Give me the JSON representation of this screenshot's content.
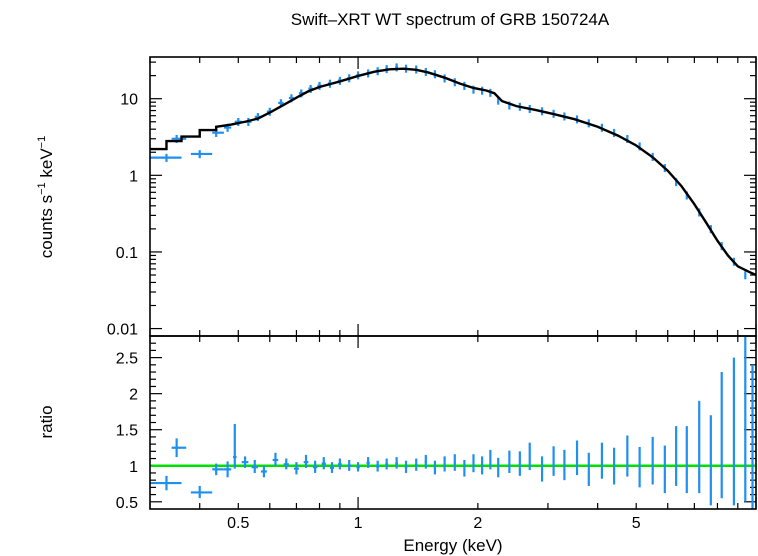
{
  "chart_data": [
    {
      "type": "scatter",
      "panel": "spectrum",
      "title": "Swift–XRT WT spectrum of GRB 150724A",
      "ylabel_main": "counts s",
      "ylabel_sup1": "−1",
      "ylabel_mid": " keV",
      "ylabel_sup2": "−1",
      "xscale": "log",
      "yscale": "log",
      "xlim": [
        0.3,
        10
      ],
      "ylim": [
        0.008,
        35
      ],
      "yticks": [
        "0.01",
        "0.1",
        "1",
        "10"
      ],
      "yticks_values": [
        0.01,
        0.1,
        1,
        10
      ],
      "series": [
        {
          "kind": "data",
          "color": "#1f8ff0",
          "points": [
            [
              0.33,
              1.7,
              0.3,
              0.36
            ],
            [
              0.35,
              3.0,
              0.34,
              0.37
            ],
            [
              0.4,
              1.9,
              0.38,
              0.43
            ],
            [
              0.44,
              3.6,
              0.43,
              0.46
            ],
            [
              0.47,
              4.2,
              0.46,
              0.48
            ],
            [
              0.5,
              5.0,
              0.49,
              0.51
            ],
            [
              0.53,
              5.0,
              0.52,
              0.54
            ],
            [
              0.56,
              5.8,
              0.55,
              0.57
            ],
            [
              0.6,
              6.8,
              0.59,
              0.61
            ],
            [
              0.64,
              8.8,
              0.63,
              0.65
            ],
            [
              0.68,
              10.2,
              0.67,
              0.69
            ],
            [
              0.72,
              11.8,
              0.71,
              0.73
            ],
            [
              0.76,
              13.5,
              0.75,
              0.77
            ],
            [
              0.8,
              14.8,
              0.79,
              0.81
            ],
            [
              0.85,
              15.8,
              0.84,
              0.86
            ],
            [
              0.9,
              17.2,
              0.89,
              0.91
            ],
            [
              0.95,
              18.6,
              0.94,
              0.96
            ],
            [
              1.0,
              20.3,
              0.99,
              1.01
            ],
            [
              1.06,
              21.5,
              1.05,
              1.07
            ],
            [
              1.12,
              23.0,
              1.11,
              1.13
            ],
            [
              1.18,
              24.5,
              1.17,
              1.19
            ],
            [
              1.25,
              25.8,
              1.24,
              1.26
            ],
            [
              1.32,
              24.8,
              1.31,
              1.33
            ],
            [
              1.4,
              24.2,
              1.39,
              1.41
            ],
            [
              1.48,
              22.5,
              1.47,
              1.49
            ],
            [
              1.56,
              21.0,
              1.55,
              1.57
            ],
            [
              1.65,
              18.5,
              1.64,
              1.66
            ],
            [
              1.75,
              16.5,
              1.74,
              1.76
            ],
            [
              1.85,
              14.8,
              1.84,
              1.86
            ],
            [
              1.95,
              13.2,
              1.94,
              1.96
            ],
            [
              2.05,
              12.8,
              2.04,
              2.06
            ],
            [
              2.15,
              12.0,
              2.14,
              2.16
            ],
            [
              2.25,
              9.5,
              2.24,
              2.26
            ],
            [
              2.4,
              8.2,
              2.39,
              2.41
            ],
            [
              2.55,
              7.9,
              2.54,
              2.56
            ],
            [
              2.7,
              7.4,
              2.69,
              2.71
            ],
            [
              2.9,
              6.9,
              2.89,
              2.91
            ],
            [
              3.1,
              6.4,
              3.09,
              3.11
            ],
            [
              3.3,
              5.9,
              3.29,
              3.31
            ],
            [
              3.55,
              5.4,
              3.54,
              3.56
            ],
            [
              3.8,
              4.8,
              3.79,
              3.81
            ],
            [
              4.1,
              4.2,
              4.09,
              4.11
            ],
            [
              4.4,
              3.6,
              4.39,
              4.41
            ],
            [
              4.75,
              3.0,
              4.74,
              4.76
            ],
            [
              5.1,
              2.4,
              5.09,
              5.11
            ],
            [
              5.5,
              1.75,
              5.49,
              5.51
            ],
            [
              5.9,
              1.25,
              5.89,
              5.91
            ],
            [
              6.3,
              0.82,
              6.29,
              6.31
            ],
            [
              6.7,
              0.55,
              6.69,
              6.71
            ],
            [
              7.2,
              0.33,
              7.19,
              7.21
            ],
            [
              7.7,
              0.2,
              7.69,
              7.71
            ],
            [
              8.2,
              0.12,
              8.19,
              8.21
            ],
            [
              8.8,
              0.075,
              8.79,
              8.81
            ],
            [
              9.4,
              0.05,
              9.39,
              9.41
            ]
          ]
        },
        {
          "kind": "model",
          "color": "#000000",
          "points": [
            [
              0.3,
              2.2
            ],
            [
              0.33,
              2.2
            ],
            [
              0.33,
              2.8
            ],
            [
              0.36,
              2.8
            ],
            [
              0.36,
              3.2
            ],
            [
              0.4,
              3.2
            ],
            [
              0.4,
              3.9
            ],
            [
              0.44,
              3.9
            ],
            [
              0.44,
              4.3
            ],
            [
              0.48,
              4.6
            ],
            [
              0.52,
              5.0
            ],
            [
              0.56,
              5.5
            ],
            [
              0.6,
              6.6
            ],
            [
              0.65,
              8.3
            ],
            [
              0.7,
              10.3
            ],
            [
              0.75,
              12.5
            ],
            [
              0.8,
              14.2
            ],
            [
              0.85,
              15.5
            ],
            [
              0.9,
              16.8
            ],
            [
              1.0,
              19.8
            ],
            [
              1.1,
              22.5
            ],
            [
              1.2,
              24.2
            ],
            [
              1.3,
              24.6
            ],
            [
              1.4,
              23.8
            ],
            [
              1.5,
              22.0
            ],
            [
              1.65,
              18.8
            ],
            [
              1.8,
              15.8
            ],
            [
              1.95,
              13.8
            ],
            [
              2.1,
              12.8
            ],
            [
              2.2,
              11.8
            ],
            [
              2.3,
              9.3
            ],
            [
              2.5,
              8.0
            ],
            [
              2.8,
              7.1
            ],
            [
              3.1,
              6.3
            ],
            [
              3.5,
              5.4
            ],
            [
              4.0,
              4.3
            ],
            [
              4.5,
              3.3
            ],
            [
              5.0,
              2.45
            ],
            [
              5.5,
              1.72
            ],
            [
              6.0,
              1.15
            ],
            [
              6.5,
              0.72
            ],
            [
              7.0,
              0.42
            ],
            [
              7.5,
              0.24
            ],
            [
              8.0,
              0.14
            ],
            [
              8.5,
              0.09
            ],
            [
              9.0,
              0.065
            ],
            [
              9.6,
              0.055
            ],
            [
              10.0,
              0.05
            ]
          ]
        }
      ]
    },
    {
      "type": "scatter",
      "panel": "ratio",
      "ylabel": "ratio",
      "xlabel": "Energy (keV)",
      "xscale": "log",
      "yscale": "linear",
      "xlim": [
        0.3,
        10
      ],
      "ylim": [
        0.4,
        2.8
      ],
      "xticks": [
        "0.5",
        "1",
        "2",
        "5"
      ],
      "xticks_values": [
        0.5,
        1,
        2,
        5
      ],
      "yticks": [
        "0.5",
        "1",
        "1.5",
        "2",
        "2.5"
      ],
      "yticks_values": [
        0.5,
        1,
        1.5,
        2,
        2.5
      ],
      "reference_line": {
        "y": 1,
        "color": "#00e000"
      },
      "series": [
        {
          "kind": "data",
          "color": "#1f8ff0",
          "points": [
            [
              0.33,
              0.76,
              0.3,
              0.36,
              0.66,
              0.86
            ],
            [
              0.35,
              1.25,
              0.34,
              0.37,
              1.12,
              1.38
            ],
            [
              0.4,
              0.63,
              0.38,
              0.43,
              0.55,
              0.72
            ],
            [
              0.44,
              0.95,
              0.43,
              0.46,
              0.87,
              1.03
            ],
            [
              0.47,
              0.95,
              0.46,
              0.48,
              0.84,
              1.06
            ],
            [
              0.49,
              1.12,
              0.485,
              0.495,
              0.96,
              1.58
            ],
            [
              0.52,
              1.05,
              0.51,
              0.53,
              0.97,
              1.13
            ],
            [
              0.55,
              0.98,
              0.54,
              0.56,
              0.9,
              1.08
            ],
            [
              0.58,
              0.92,
              0.57,
              0.59,
              0.84,
              1.0
            ],
            [
              0.62,
              1.08,
              0.61,
              0.63,
              1.0,
              1.18
            ],
            [
              0.66,
              1.02,
              0.65,
              0.67,
              0.95,
              1.1
            ],
            [
              0.7,
              0.96,
              0.69,
              0.71,
              0.88,
              1.05
            ],
            [
              0.74,
              1.05,
              0.73,
              0.75,
              0.97,
              1.15
            ],
            [
              0.78,
              0.98,
              0.77,
              0.79,
              0.9,
              1.07
            ],
            [
              0.82,
              1.03,
              0.81,
              0.83,
              0.95,
              1.12
            ],
            [
              0.86,
              0.97,
              0.85,
              0.87,
              0.9,
              1.05
            ],
            [
              0.9,
              1.02,
              0.89,
              0.91,
              0.95,
              1.1
            ],
            [
              0.95,
              1.0,
              0.94,
              0.96,
              0.93,
              1.08
            ],
            [
              1.0,
              0.98,
              0.99,
              1.01,
              0.92,
              1.05
            ],
            [
              1.06,
              1.04,
              1.05,
              1.07,
              0.97,
              1.12
            ],
            [
              1.12,
              0.99,
              1.11,
              1.13,
              0.92,
              1.07
            ],
            [
              1.18,
              1.02,
              1.17,
              1.19,
              0.95,
              1.1
            ],
            [
              1.25,
              1.03,
              1.24,
              1.26,
              0.96,
              1.12
            ],
            [
              1.32,
              0.98,
              1.31,
              1.33,
              0.9,
              1.07
            ],
            [
              1.4,
              1.01,
              1.39,
              1.41,
              0.93,
              1.1
            ],
            [
              1.48,
              1.05,
              1.47,
              1.49,
              0.96,
              1.15
            ],
            [
              1.56,
              0.97,
              1.55,
              1.57,
              0.88,
              1.07
            ],
            [
              1.65,
              1.02,
              1.64,
              1.66,
              0.92,
              1.13
            ],
            [
              1.75,
              1.04,
              1.74,
              1.76,
              0.93,
              1.16
            ],
            [
              1.85,
              0.96,
              1.84,
              1.86,
              0.85,
              1.08
            ],
            [
              1.95,
              1.03,
              1.94,
              1.96,
              0.91,
              1.16
            ],
            [
              2.05,
              1.0,
              2.04,
              2.06,
              0.88,
              1.13
            ],
            [
              2.15,
              1.08,
              2.14,
              2.16,
              0.95,
              1.22
            ],
            [
              2.25,
              0.97,
              2.24,
              2.26,
              0.84,
              1.11
            ],
            [
              2.4,
              1.05,
              2.39,
              2.41,
              0.9,
              1.21
            ],
            [
              2.55,
              1.02,
              2.54,
              2.56,
              0.86,
              1.2
            ],
            [
              2.7,
              1.12,
              2.69,
              2.71,
              0.94,
              1.32
            ],
            [
              2.9,
              0.95,
              2.89,
              2.91,
              0.78,
              1.13
            ],
            [
              3.1,
              1.06,
              3.09,
              3.11,
              0.86,
              1.27
            ],
            [
              3.3,
              1.0,
              3.29,
              3.31,
              0.8,
              1.22
            ],
            [
              3.55,
              1.1,
              3.54,
              3.56,
              0.87,
              1.35
            ],
            [
              3.8,
              0.94,
              3.79,
              3.81,
              0.72,
              1.18
            ],
            [
              4.1,
              1.06,
              4.09,
              4.11,
              0.82,
              1.32
            ],
            [
              4.4,
              0.98,
              4.39,
              4.41,
              0.74,
              1.25
            ],
            [
              4.75,
              1.12,
              4.74,
              4.76,
              0.85,
              1.42
            ],
            [
              5.1,
              0.96,
              5.09,
              5.11,
              0.7,
              1.26
            ],
            [
              5.5,
              1.05,
              5.49,
              5.51,
              0.74,
              1.4
            ],
            [
              5.9,
              0.92,
              5.89,
              5.91,
              0.62,
              1.28
            ],
            [
              6.3,
              1.1,
              6.29,
              6.31,
              0.72,
              1.55
            ],
            [
              6.7,
              1.02,
              6.69,
              6.71,
              0.62,
              1.55
            ],
            [
              7.2,
              1.15,
              7.19,
              7.21,
              0.62,
              1.9
            ],
            [
              7.7,
              0.95,
              7.69,
              7.71,
              0.45,
              1.7
            ],
            [
              8.2,
              1.2,
              8.19,
              8.21,
              0.55,
              2.3
            ],
            [
              8.8,
              1.05,
              8.79,
              8.81,
              0.45,
              2.5
            ],
            [
              9.4,
              1.3,
              9.39,
              9.41,
              0.5,
              2.8
            ],
            [
              9.8,
              0.9,
              9.79,
              9.81,
              0.4,
              2.4
            ]
          ]
        }
      ]
    }
  ]
}
